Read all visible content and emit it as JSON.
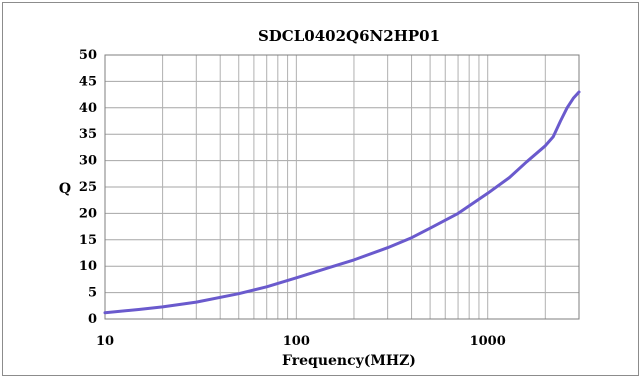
{
  "chart_data": {
    "type": "line",
    "title": "SDCL0402Q6N2HP01",
    "xlabel": "Frequency(MHZ)",
    "ylabel": "Q",
    "xscale": "log",
    "xlim": [
      10,
      3000
    ],
    "ylim": [
      0,
      50
    ],
    "yticks": [
      0,
      5,
      10,
      15,
      20,
      25,
      30,
      35,
      40,
      45,
      50
    ],
    "xticks": [
      10,
      100,
      1000
    ],
    "xtick_labels": [
      "10",
      "100",
      "1000"
    ],
    "grid": true,
    "legend": "none",
    "series": [
      {
        "color": "#6a5acd",
        "x": [
          10,
          15,
          20,
          30,
          50,
          70,
          100,
          150,
          200,
          300,
          400,
          500,
          700,
          1000,
          1300,
          1600,
          2000,
          2200,
          2400,
          2600,
          2800,
          3000
        ],
        "y": [
          1.2,
          1.8,
          2.3,
          3.2,
          4.8,
          6.1,
          7.8,
          9.8,
          11.2,
          13.5,
          15.4,
          17.2,
          20.0,
          23.8,
          26.8,
          29.8,
          32.8,
          34.5,
          37.5,
          40.0,
          41.8,
          43.0
        ]
      }
    ]
  }
}
